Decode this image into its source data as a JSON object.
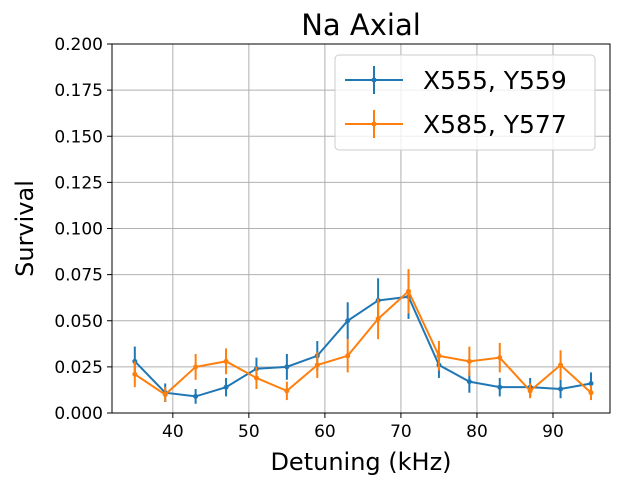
{
  "chart_data": {
    "type": "line",
    "title": "Na Axial",
    "xlabel": "Detuning (kHz)",
    "ylabel": "Survival",
    "xlim": [
      32,
      97.5
    ],
    "ylim": [
      0,
      0.2
    ],
    "xticks": [
      40,
      50,
      60,
      70,
      80,
      90
    ],
    "yticks": [
      0,
      0.025,
      0.05,
      0.075,
      0.1,
      0.125,
      0.15,
      0.175,
      0.2
    ],
    "xtick_labels": [
      "40",
      "50",
      "60",
      "70",
      "80",
      "90"
    ],
    "ytick_labels": [
      "0.000",
      "0.025",
      "0.050",
      "0.075",
      "0.100",
      "0.125",
      "0.150",
      "0.175",
      "0.200"
    ],
    "grid": true,
    "legend_position": "top-right",
    "x": [
      35,
      39,
      43,
      47,
      51,
      55,
      59,
      63,
      67,
      71,
      75,
      79,
      83,
      87,
      91,
      95
    ],
    "series": [
      {
        "name": "X555, Y559",
        "color": "#1f77b4",
        "values": [
          0.028,
          0.011,
          0.009,
          0.014,
          0.024,
          0.025,
          0.031,
          0.05,
          0.061,
          0.063,
          0.026,
          0.017,
          0.014,
          0.014,
          0.013,
          0.016
        ],
        "errors": [
          0.008,
          0.005,
          0.004,
          0.005,
          0.006,
          0.007,
          0.008,
          0.01,
          0.012,
          0.012,
          0.007,
          0.006,
          0.005,
          0.005,
          0.005,
          0.006
        ]
      },
      {
        "name": "X585, Y577",
        "color": "#ff7f0e",
        "values": [
          0.021,
          0.01,
          0.025,
          0.028,
          0.019,
          0.012,
          0.026,
          0.031,
          0.051,
          0.066,
          0.031,
          0.028,
          0.03,
          0.012,
          0.026,
          0.011
        ],
        "errors": [
          0.007,
          0.004,
          0.007,
          0.007,
          0.006,
          0.005,
          0.007,
          0.009,
          0.011,
          0.012,
          0.008,
          0.008,
          0.008,
          0.004,
          0.008,
          0.004
        ]
      }
    ]
  }
}
